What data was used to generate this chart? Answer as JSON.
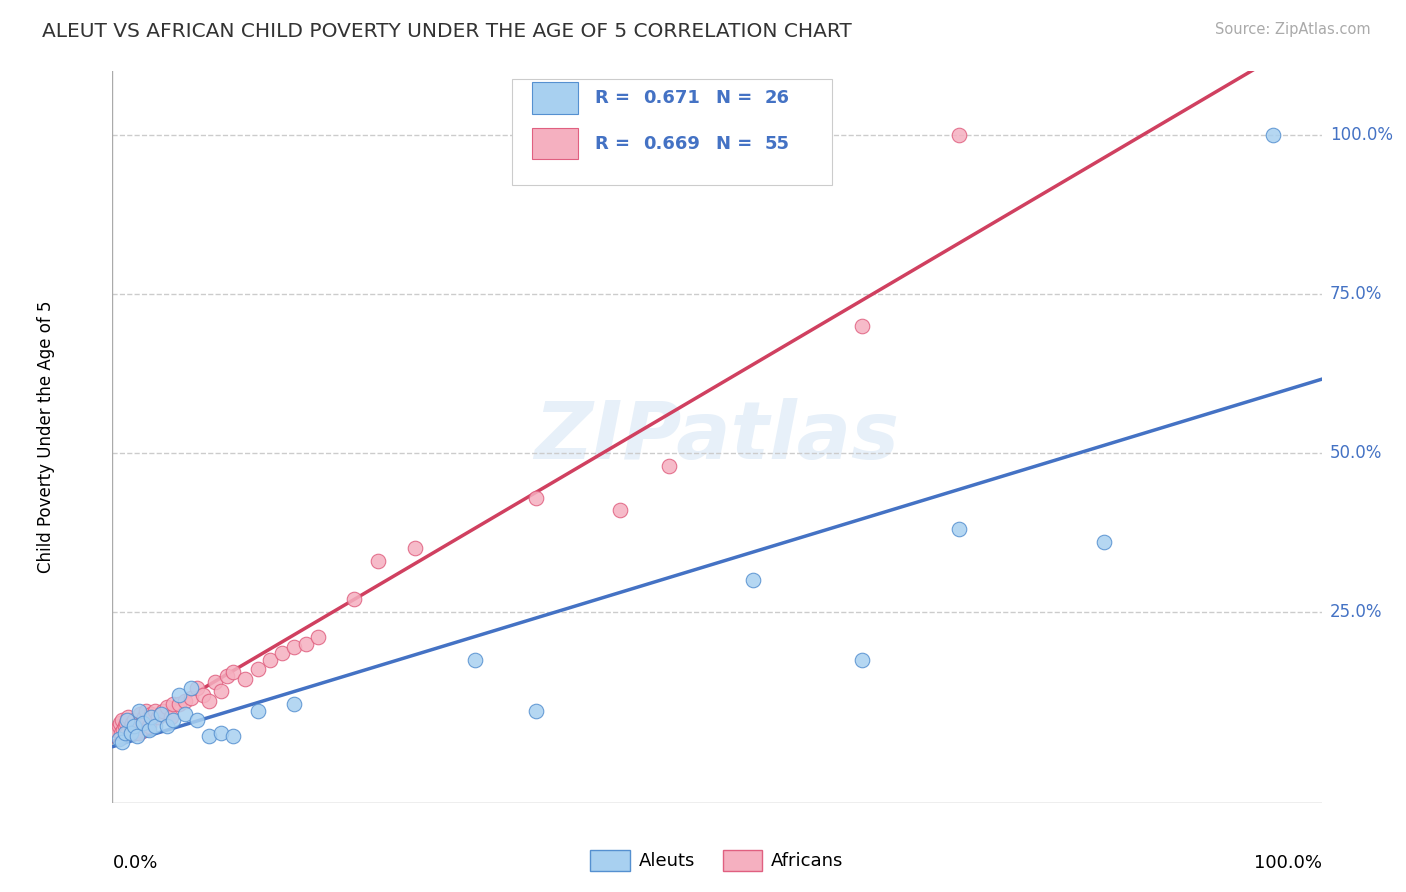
{
  "title": "ALEUT VS AFRICAN CHILD POVERTY UNDER THE AGE OF 5 CORRELATION CHART",
  "source": "Source: ZipAtlas.com",
  "ylabel": "Child Poverty Under the Age of 5",
  "xlim": [
    0.0,
    1.0
  ],
  "ylim": [
    -0.05,
    1.1
  ],
  "yticks": [
    0.25,
    0.5,
    0.75,
    1.0
  ],
  "ytick_labels": [
    "25.0%",
    "50.0%",
    "75.0%",
    "100.0%"
  ],
  "watermark": "ZIPatlas",
  "aleut_color": "#a8d0f0",
  "african_color": "#f5b0c0",
  "aleut_edge_color": "#5590d0",
  "african_edge_color": "#e06080",
  "aleut_line_color": "#4472c4",
  "african_line_color": "#d04060",
  "aleuts_x": [
    0.005,
    0.008,
    0.01,
    0.012,
    0.015,
    0.018,
    0.02,
    0.022,
    0.025,
    0.03,
    0.032,
    0.035,
    0.04,
    0.045,
    0.05,
    0.055,
    0.06,
    0.065,
    0.07,
    0.08,
    0.09,
    0.1,
    0.12,
    0.15,
    0.3,
    0.35,
    0.53,
    0.62,
    0.7,
    0.82,
    0.96
  ],
  "aleuts_y": [
    0.05,
    0.045,
    0.06,
    0.08,
    0.06,
    0.07,
    0.055,
    0.095,
    0.075,
    0.065,
    0.085,
    0.07,
    0.09,
    0.07,
    0.08,
    0.12,
    0.09,
    0.13,
    0.08,
    0.055,
    0.06,
    0.055,
    0.095,
    0.105,
    0.175,
    0.095,
    0.3,
    0.175,
    0.38,
    0.36,
    1.0
  ],
  "africans_x": [
    0.003,
    0.005,
    0.006,
    0.007,
    0.008,
    0.009,
    0.01,
    0.011,
    0.012,
    0.013,
    0.015,
    0.016,
    0.017,
    0.018,
    0.02,
    0.021,
    0.022,
    0.023,
    0.025,
    0.026,
    0.028,
    0.03,
    0.032,
    0.035,
    0.038,
    0.04,
    0.042,
    0.045,
    0.048,
    0.05,
    0.055,
    0.06,
    0.065,
    0.07,
    0.075,
    0.08,
    0.085,
    0.09,
    0.095,
    0.1,
    0.11,
    0.12,
    0.13,
    0.14,
    0.15,
    0.16,
    0.17,
    0.2,
    0.22,
    0.25,
    0.35,
    0.42,
    0.46,
    0.62,
    0.7
  ],
  "africans_y": [
    0.065,
    0.07,
    0.075,
    0.06,
    0.08,
    0.065,
    0.07,
    0.075,
    0.06,
    0.085,
    0.07,
    0.075,
    0.06,
    0.08,
    0.065,
    0.075,
    0.06,
    0.09,
    0.08,
    0.085,
    0.095,
    0.07,
    0.09,
    0.095,
    0.085,
    0.09,
    0.095,
    0.1,
    0.085,
    0.105,
    0.105,
    0.11,
    0.115,
    0.13,
    0.12,
    0.11,
    0.14,
    0.125,
    0.15,
    0.155,
    0.145,
    0.16,
    0.175,
    0.185,
    0.195,
    0.2,
    0.21,
    0.27,
    0.33,
    0.35,
    0.43,
    0.41,
    0.48,
    0.7,
    1.0
  ]
}
